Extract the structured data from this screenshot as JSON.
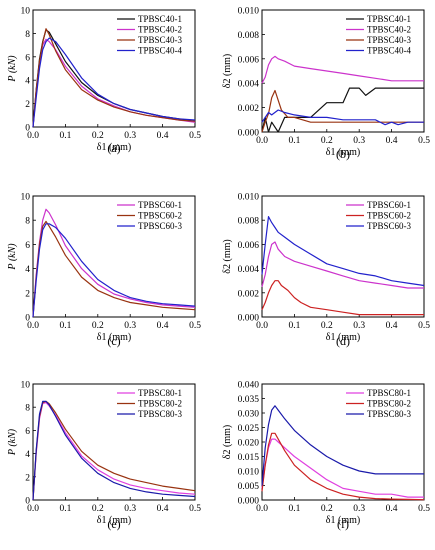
{
  "colors": {
    "black": "#111111",
    "magenta": "#cc33cc",
    "brown": "#993311",
    "blue": "#2222cc",
    "pink": "#e040e0",
    "red": "#cc2222",
    "violet": "#5522aa",
    "navy": "#1a1aaa"
  },
  "chart_data": [
    {
      "type": "line",
      "panel_label": "(a)",
      "xlabel": "δ1 (mm)",
      "ylabel": "P (kN)",
      "xlim": [
        0,
        0.5
      ],
      "ylim": [
        0,
        10
      ],
      "xticks": [
        "0.0",
        "0.1",
        "0.2",
        "0.3",
        "0.4",
        "0.5"
      ],
      "yticks": [
        "0",
        "2",
        "4",
        "6",
        "8",
        "10"
      ],
      "legend": "top-right",
      "series": [
        {
          "name": "TPBSC40-1",
          "color_key": "black",
          "x": [
            0,
            0.01,
            0.02,
            0.03,
            0.04,
            0.05,
            0.07,
            0.1,
            0.15,
            0.2,
            0.25,
            0.3,
            0.35,
            0.4,
            0.45,
            0.5
          ],
          "y": [
            0,
            3.2,
            5.8,
            7.3,
            8.3,
            8.1,
            7.1,
            5.6,
            3.8,
            2.7,
            2.0,
            1.5,
            1.2,
            0.9,
            0.7,
            0.5
          ]
        },
        {
          "name": "TPBSC40-2",
          "color_key": "magenta",
          "x": [
            0,
            0.01,
            0.02,
            0.03,
            0.04,
            0.05,
            0.07,
            0.1,
            0.15,
            0.2,
            0.25,
            0.3,
            0.35,
            0.4,
            0.45,
            0.5
          ],
          "y": [
            0,
            3.0,
            5.5,
            7.0,
            7.5,
            7.3,
            6.6,
            5.2,
            3.5,
            2.4,
            1.8,
            1.3,
            1.0,
            0.8,
            0.6,
            0.4
          ]
        },
        {
          "name": "TPBSC40-3",
          "color_key": "brown",
          "x": [
            0,
            0.01,
            0.02,
            0.03,
            0.04,
            0.05,
            0.07,
            0.1,
            0.15,
            0.2,
            0.25,
            0.3,
            0.35,
            0.4,
            0.45,
            0.5
          ],
          "y": [
            0,
            3.1,
            5.6,
            7.2,
            8.4,
            7.9,
            6.5,
            4.9,
            3.2,
            2.3,
            1.7,
            1.3,
            1.0,
            0.8,
            0.6,
            0.5
          ]
        },
        {
          "name": "TPBSC40-4",
          "color_key": "blue",
          "x": [
            0,
            0.01,
            0.02,
            0.03,
            0.04,
            0.05,
            0.07,
            0.1,
            0.15,
            0.2,
            0.25,
            0.3,
            0.35,
            0.4,
            0.45,
            0.5
          ],
          "y": [
            0,
            2.5,
            5.0,
            6.6,
            7.3,
            7.6,
            7.3,
            6.2,
            4.2,
            2.8,
            2.0,
            1.5,
            1.2,
            0.9,
            0.7,
            0.6
          ]
        }
      ]
    },
    {
      "type": "line",
      "panel_label": "(b)",
      "xlabel": "δ1 (mm)",
      "ylabel": "δ2 (mm)",
      "xlim": [
        0,
        0.5
      ],
      "ylim": [
        0,
        0.01
      ],
      "xticks": [
        "0.0",
        "0.1",
        "0.2",
        "0.3",
        "0.4",
        "0.5"
      ],
      "yticks": [
        "0.000",
        "0.002",
        "0.004",
        "0.006",
        "0.008",
        "0.010"
      ],
      "legend": "top-right",
      "series": [
        {
          "name": "TPBSC40-1",
          "color_key": "black",
          "x": [
            0,
            0.01,
            0.02,
            0.03,
            0.05,
            0.07,
            0.1,
            0.15,
            0.2,
            0.25,
            0.27,
            0.3,
            0.32,
            0.35,
            0.4,
            0.45,
            0.5
          ],
          "y": [
            0,
            0.0012,
            0.0,
            0.0008,
            0.0,
            0.0012,
            0.0012,
            0.0012,
            0.0024,
            0.0024,
            0.0036,
            0.0036,
            0.003,
            0.0036,
            0.0036,
            0.0036,
            0.0036
          ]
        },
        {
          "name": "TPBSC40-2",
          "color_key": "magenta",
          "x": [
            0,
            0.01,
            0.02,
            0.03,
            0.04,
            0.05,
            0.07,
            0.1,
            0.15,
            0.2,
            0.25,
            0.3,
            0.35,
            0.4,
            0.45,
            0.5
          ],
          "y": [
            0.004,
            0.0045,
            0.0055,
            0.006,
            0.0062,
            0.006,
            0.0058,
            0.0054,
            0.0052,
            0.005,
            0.0048,
            0.0046,
            0.0044,
            0.0042,
            0.0042,
            0.0042
          ]
        },
        {
          "name": "TPBSC40-3",
          "color_key": "brown",
          "x": [
            0,
            0.01,
            0.02,
            0.03,
            0.04,
            0.05,
            0.06,
            0.08,
            0.1,
            0.15,
            0.2,
            0.25,
            0.3,
            0.35,
            0.4,
            0.45,
            0.5
          ],
          "y": [
            0,
            0.0008,
            0.0015,
            0.0028,
            0.0034,
            0.0026,
            0.0018,
            0.0012,
            0.0012,
            0.0008,
            0.0008,
            0.0008,
            0.0008,
            0.0008,
            0.0008,
            0.0008,
            0.0008
          ]
        },
        {
          "name": "TPBSC40-4",
          "color_key": "blue",
          "x": [
            0,
            0.01,
            0.02,
            0.03,
            0.05,
            0.07,
            0.1,
            0.15,
            0.2,
            0.25,
            0.3,
            0.35,
            0.38,
            0.4,
            0.42,
            0.45,
            0.5
          ],
          "y": [
            0.0008,
            0.0012,
            0.0016,
            0.0014,
            0.0018,
            0.0016,
            0.0014,
            0.0012,
            0.0012,
            0.001,
            0.001,
            0.001,
            0.0006,
            0.0008,
            0.0006,
            0.0008,
            0.0008
          ]
        }
      ]
    },
    {
      "type": "line",
      "panel_label": "(c)",
      "xlabel": "δ1 (mm)",
      "ylabel": "P (kN)",
      "xlim": [
        0,
        0.5
      ],
      "ylim": [
        0,
        10
      ],
      "xticks": [
        "0.0",
        "0.1",
        "0.2",
        "0.3",
        "0.4",
        "0.5"
      ],
      "yticks": [
        "0",
        "2",
        "4",
        "6",
        "8",
        "10"
      ],
      "legend": "top-right",
      "series": [
        {
          "name": "TPBSC60-1",
          "color_key": "magenta",
          "x": [
            0,
            0.01,
            0.02,
            0.03,
            0.04,
            0.05,
            0.07,
            0.1,
            0.15,
            0.2,
            0.25,
            0.3,
            0.35,
            0.4,
            0.45,
            0.5
          ],
          "y": [
            0,
            3.5,
            6.2,
            8.0,
            8.9,
            8.6,
            7.6,
            5.9,
            4.0,
            2.7,
            1.9,
            1.5,
            1.2,
            1.0,
            0.9,
            0.8
          ]
        },
        {
          "name": "TPBSC60-2",
          "color_key": "brown",
          "x": [
            0,
            0.01,
            0.02,
            0.03,
            0.04,
            0.05,
            0.07,
            0.1,
            0.15,
            0.2,
            0.25,
            0.3,
            0.35,
            0.4,
            0.45,
            0.5
          ],
          "y": [
            0,
            3.3,
            6.0,
            7.5,
            7.9,
            7.5,
            6.6,
            5.1,
            3.3,
            2.2,
            1.6,
            1.2,
            1.0,
            0.8,
            0.7,
            0.6
          ]
        },
        {
          "name": "TPBSC60-3",
          "color_key": "blue",
          "x": [
            0,
            0.01,
            0.02,
            0.03,
            0.04,
            0.05,
            0.07,
            0.1,
            0.15,
            0.2,
            0.25,
            0.3,
            0.35,
            0.4,
            0.45,
            0.5
          ],
          "y": [
            0,
            3.0,
            5.6,
            7.2,
            7.7,
            7.7,
            7.4,
            6.5,
            4.6,
            3.1,
            2.2,
            1.6,
            1.3,
            1.1,
            1.0,
            0.9
          ]
        }
      ]
    },
    {
      "type": "line",
      "panel_label": "(d)",
      "xlabel": "δ1 (mm)",
      "ylabel": "δ2 (mm)",
      "xlim": [
        0,
        0.5
      ],
      "ylim": [
        0,
        0.01
      ],
      "xticks": [
        "0.0",
        "0.1",
        "0.2",
        "0.3",
        "0.4",
        "0.5"
      ],
      "yticks": [
        "0.000",
        "0.002",
        "0.004",
        "0.006",
        "0.008",
        "0.010"
      ],
      "legend": "top-right",
      "series": [
        {
          "name": "TPBSC60-1",
          "color_key": "magenta",
          "x": [
            0,
            0.01,
            0.02,
            0.03,
            0.04,
            0.05,
            0.07,
            0.1,
            0.15,
            0.2,
            0.25,
            0.3,
            0.35,
            0.4,
            0.45,
            0.5
          ],
          "y": [
            0.0025,
            0.0035,
            0.005,
            0.006,
            0.0062,
            0.0056,
            0.005,
            0.0046,
            0.0042,
            0.0038,
            0.0034,
            0.003,
            0.0028,
            0.0026,
            0.0024,
            0.0024
          ]
        },
        {
          "name": "TPBSC60-2",
          "color_key": "red",
          "x": [
            0,
            0.01,
            0.02,
            0.03,
            0.04,
            0.05,
            0.06,
            0.08,
            0.1,
            0.12,
            0.15,
            0.2,
            0.25,
            0.3,
            0.35,
            0.4,
            0.45,
            0.5
          ],
          "y": [
            0.0006,
            0.0012,
            0.002,
            0.0026,
            0.003,
            0.003,
            0.0026,
            0.0022,
            0.0016,
            0.0012,
            0.0008,
            0.0006,
            0.0004,
            0.0002,
            0.0002,
            0.0002,
            0.0002,
            0.0002
          ]
        },
        {
          "name": "TPBSC60-3",
          "color_key": "blue",
          "x": [
            0,
            0.01,
            0.02,
            0.03,
            0.04,
            0.05,
            0.07,
            0.1,
            0.15,
            0.2,
            0.25,
            0.3,
            0.35,
            0.4,
            0.45,
            0.5
          ],
          "y": [
            0.0035,
            0.006,
            0.0083,
            0.0078,
            0.0074,
            0.007,
            0.0066,
            0.006,
            0.0052,
            0.0044,
            0.004,
            0.0036,
            0.0034,
            0.003,
            0.0028,
            0.0026
          ]
        }
      ]
    },
    {
      "type": "line",
      "panel_label": "(e)",
      "xlabel": "δ1 (mm)",
      "ylabel": "P (kN)",
      "xlim": [
        0,
        0.5
      ],
      "ylim": [
        0,
        10
      ],
      "xticks": [
        "0.0",
        "0.1",
        "0.2",
        "0.3",
        "0.4",
        "0.5"
      ],
      "yticks": [
        "0",
        "2",
        "4",
        "6",
        "8",
        "10"
      ],
      "legend": "top-right",
      "series": [
        {
          "name": "TPBSC80-1",
          "color_key": "pink",
          "x": [
            0,
            0.01,
            0.02,
            0.03,
            0.04,
            0.05,
            0.07,
            0.1,
            0.15,
            0.2,
            0.25,
            0.3,
            0.35,
            0.4,
            0.45,
            0.5
          ],
          "y": [
            0,
            4.0,
            7.0,
            8.3,
            8.4,
            8.1,
            7.3,
            5.8,
            3.8,
            2.6,
            1.8,
            1.3,
            1.0,
            0.8,
            0.6,
            0.5
          ]
        },
        {
          "name": "TPBSC80-2",
          "color_key": "brown",
          "x": [
            0,
            0.01,
            0.02,
            0.03,
            0.04,
            0.05,
            0.07,
            0.1,
            0.15,
            0.2,
            0.25,
            0.3,
            0.35,
            0.4,
            0.45,
            0.5
          ],
          "y": [
            0,
            4.2,
            7.2,
            8.4,
            8.5,
            8.3,
            7.5,
            6.1,
            4.2,
            3.0,
            2.3,
            1.8,
            1.5,
            1.2,
            1.0,
            0.8
          ]
        },
        {
          "name": "TPBSC80-3",
          "color_key": "navy",
          "x": [
            0,
            0.01,
            0.02,
            0.03,
            0.04,
            0.05,
            0.07,
            0.1,
            0.15,
            0.2,
            0.25,
            0.3,
            0.35,
            0.4,
            0.45,
            0.5
          ],
          "y": [
            0,
            4.3,
            7.4,
            8.5,
            8.5,
            8.2,
            7.2,
            5.6,
            3.6,
            2.3,
            1.5,
            1.0,
            0.7,
            0.5,
            0.4,
            0.3
          ]
        }
      ]
    },
    {
      "type": "line",
      "panel_label": "(f)",
      "xlabel": "δ1 (mm)",
      "ylabel": "δ2 (mm)",
      "xlim": [
        0,
        0.5
      ],
      "ylim": [
        0,
        0.04
      ],
      "xticks": [
        "0.0",
        "0.1",
        "0.2",
        "0.3",
        "0.4",
        "0.5"
      ],
      "yticks": [
        "0.000",
        "0.005",
        "0.010",
        "0.015",
        "0.020",
        "0.025",
        "0.030",
        "0.035",
        "0.040"
      ],
      "legend": "top-right",
      "series": [
        {
          "name": "TPBSC80-1",
          "color_key": "pink",
          "x": [
            0,
            0.01,
            0.02,
            0.03,
            0.04,
            0.05,
            0.07,
            0.1,
            0.15,
            0.2,
            0.25,
            0.3,
            0.35,
            0.4,
            0.45,
            0.5
          ],
          "y": [
            0.004,
            0.012,
            0.018,
            0.021,
            0.021,
            0.02,
            0.018,
            0.015,
            0.011,
            0.007,
            0.004,
            0.003,
            0.002,
            0.002,
            0.001,
            0.001
          ]
        },
        {
          "name": "TPBSC80-2",
          "color_key": "red",
          "x": [
            0,
            0.01,
            0.02,
            0.03,
            0.04,
            0.05,
            0.07,
            0.1,
            0.15,
            0.2,
            0.25,
            0.3,
            0.35,
            0.4,
            0.45,
            0.5
          ],
          "y": [
            0.003,
            0.012,
            0.019,
            0.023,
            0.023,
            0.021,
            0.017,
            0.012,
            0.007,
            0.004,
            0.002,
            0.001,
            0.0005,
            0.0003,
            0.0002,
            0.0001
          ]
        },
        {
          "name": "TPBSC80-3",
          "color_key": "navy",
          "x": [
            0,
            0.01,
            0.02,
            0.03,
            0.04,
            0.05,
            0.07,
            0.1,
            0.15,
            0.2,
            0.25,
            0.3,
            0.35,
            0.4,
            0.45,
            0.5
          ],
          "y": [
            0.005,
            0.018,
            0.026,
            0.031,
            0.0325,
            0.031,
            0.028,
            0.024,
            0.019,
            0.015,
            0.012,
            0.01,
            0.009,
            0.009,
            0.009,
            0.009
          ]
        }
      ]
    }
  ]
}
